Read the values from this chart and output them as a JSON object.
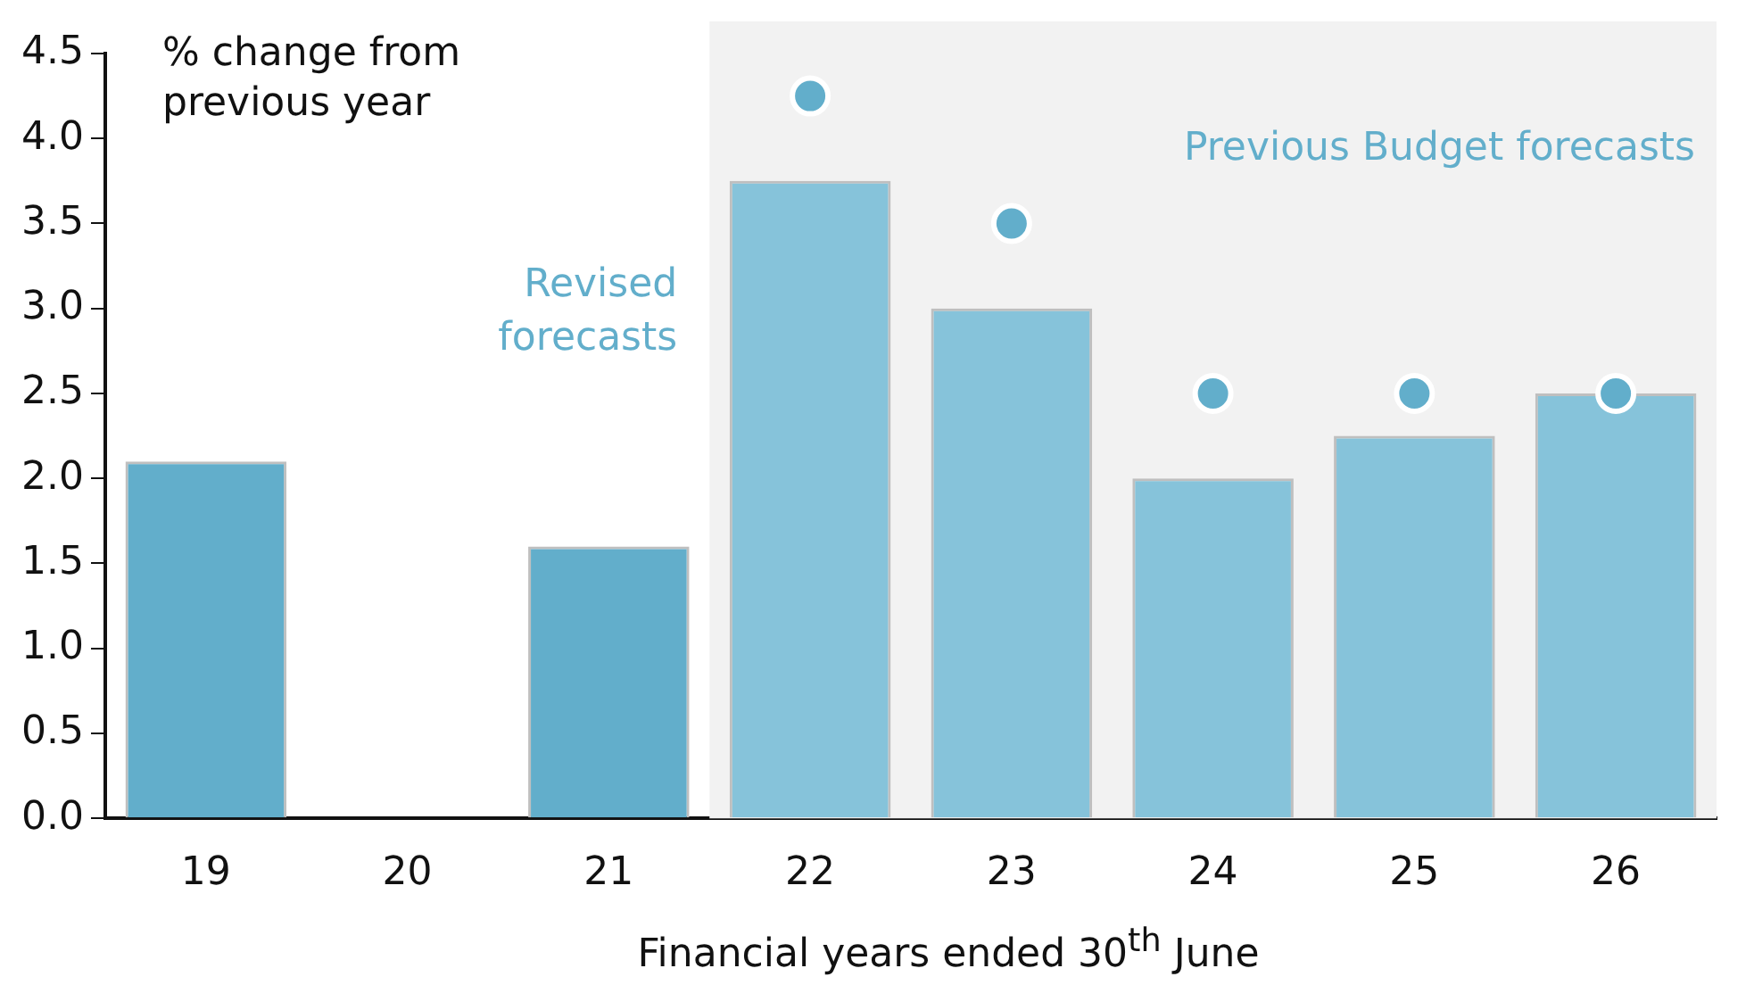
{
  "chart_data": {
    "type": "bar",
    "categories": [
      "19",
      "20",
      "21",
      "22",
      "23",
      "24",
      "25",
      "26"
    ],
    "ylabel": "% change from previous year",
    "xlabel": "Financial years ended 30$^{th}$ June",
    "series": [
      {
        "values": [
          2.1,
          null,
          1.6,
          3.75,
          3.0,
          2.0,
          2.25,
          2.5
        ],
        "colors": [
          "#62aecb",
          "#62aecb",
          "#62aecb",
          "#86c3da",
          "#86c3da",
          "#86c3da",
          "#86c3da",
          "#86c3da"
        ]
      },
      {
        "type": "scatter",
        "name": "Previous Budget forecasts",
        "color": "#62aecb",
        "x": [
          "22",
          "23",
          "24",
          "25",
          "26"
        ],
        "values": [
          4.25,
          3.5,
          2.5,
          2.5,
          2.5
        ]
      }
    ],
    "annotations": [
      "Revised forecasts"
    ],
    "bands": [
      {
        "axis": "x",
        "from": "22",
        "to": "26",
        "color": "#f2f2f2"
      }
    ],
    "ylim": [
      0,
      4.5
    ],
    "yticks": [
      {
        "value": 0,
        "label": "0.0"
      },
      0.5,
      {
        "value": 1,
        "label": "1.0"
      },
      1.5,
      {
        "value": 2,
        "label": "2.0"
      },
      2.5,
      {
        "value": 3,
        "label": "3.0"
      },
      3.5,
      {
        "value": 4,
        "label": "4.0"
      },
      4.5
    ],
    "grid": false,
    "legend": false,
    "marker": "circle"
  }
}
